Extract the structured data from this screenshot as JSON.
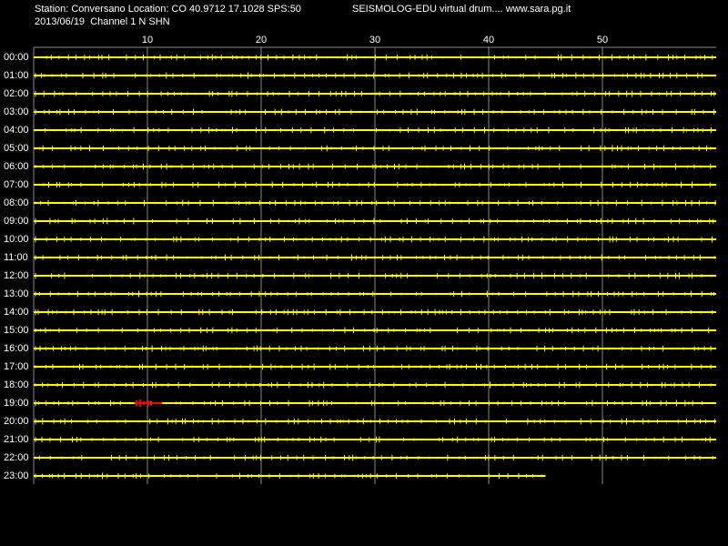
{
  "chart_data": {
    "type": "helicorder",
    "title": "Station: Conversano Location: CO 40.9712 17.1028 SPS:50",
    "subtitle": "2013/06/19  Channel 1 N SHN",
    "annotation": "SEISMOLOG-EDU virtual drum.... www.sara.pg.it",
    "categories": [
      "00:00",
      "01:00",
      "02:00",
      "03:00",
      "04:00",
      "05:00",
      "06:00",
      "07:00",
      "08:00",
      "09:00",
      "10:00",
      "11:00",
      "12:00",
      "13:00",
      "14:00",
      "15:00",
      "16:00",
      "17:00",
      "18:00",
      "19:00",
      "20:00",
      "21:00",
      "22:00",
      "23:00"
    ],
    "values": [
      60,
      60,
      60,
      60,
      60,
      60,
      60,
      60,
      60,
      60,
      60,
      60,
      60,
      60,
      60,
      60,
      60,
      60,
      60,
      60,
      60,
      60,
      60,
      45
    ],
    "color": "#ffff00",
    "xlim": [
      0,
      60
    ],
    "xticks": [
      10,
      20,
      30,
      40,
      50
    ],
    "grid": true
  }
}
